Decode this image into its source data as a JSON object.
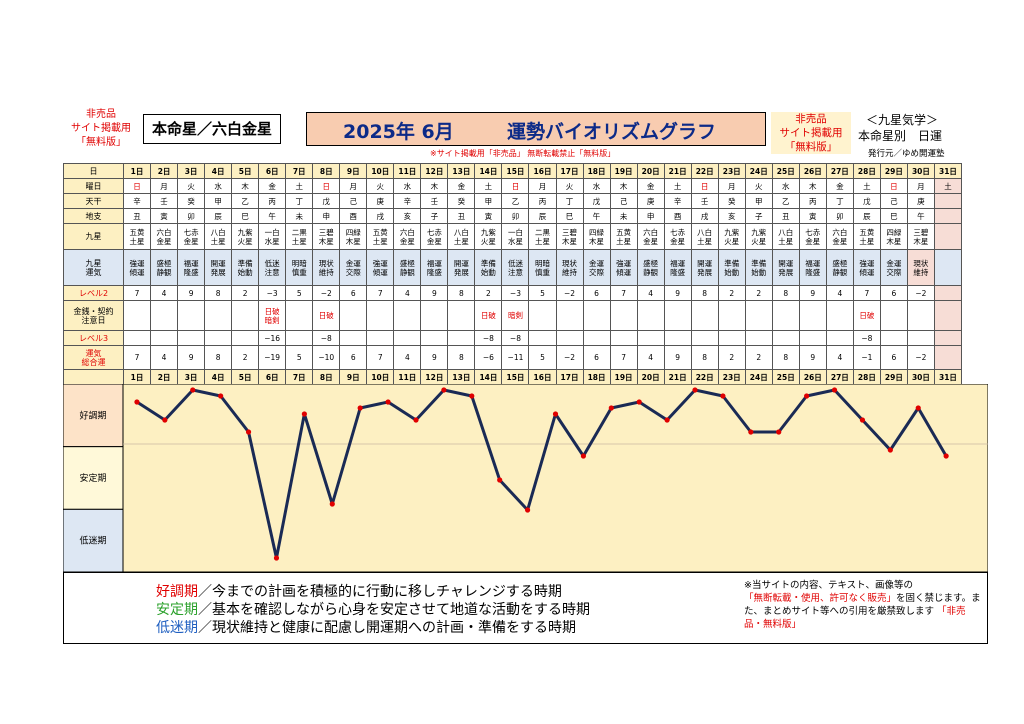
{
  "header": {
    "left_note": [
      "非売品",
      "サイト掲載用",
      "「無料版」"
    ],
    "honmei": "本命星／六白金星",
    "year_month": "2025年 6月",
    "title": "運勢バイオリズムグラフ",
    "sub_note": "※サイト掲載用「非売品」 無断転載禁止「無料版」",
    "right_note": [
      "非売品",
      "サイト掲載用",
      "「無料版」"
    ],
    "kyusei_title": "＜九星気学＞",
    "kyusei_sub": "本命星別　日運",
    "publisher": "発行元／ゆめ開運塾"
  },
  "row_labels": {
    "day": "日",
    "weekday": "曜日",
    "tenkan": "天干",
    "chishi": "地支",
    "kyusei": "九星",
    "kyusei_unki": [
      "九星",
      "運気"
    ],
    "level2": "レベル2",
    "money": [
      "金銭・契約",
      "注意日"
    ],
    "level3": "レベル3",
    "total": [
      "運気",
      "総合運"
    ]
  },
  "days": [
    "1日",
    "2日",
    "3日",
    "4日",
    "5日",
    "6日",
    "7日",
    "8日",
    "9日",
    "10日",
    "11日",
    "12日",
    "13日",
    "14日",
    "15日",
    "16日",
    "17日",
    "18日",
    "19日",
    "20日",
    "21日",
    "22日",
    "23日",
    "24日",
    "25日",
    "26日",
    "27日",
    "28日",
    "29日",
    "30日",
    "31日"
  ],
  "weekdays": [
    "日",
    "月",
    "火",
    "水",
    "木",
    "金",
    "土",
    "日",
    "月",
    "火",
    "水",
    "木",
    "金",
    "土",
    "日",
    "月",
    "火",
    "水",
    "木",
    "金",
    "土",
    "日",
    "月",
    "火",
    "水",
    "木",
    "金",
    "土",
    "日",
    "月",
    "土"
  ],
  "tenkan": [
    "辛",
    "壬",
    "癸",
    "甲",
    "乙",
    "丙",
    "丁",
    "戊",
    "己",
    "庚",
    "辛",
    "壬",
    "癸",
    "甲",
    "乙",
    "丙",
    "丁",
    "戊",
    "己",
    "庚",
    "辛",
    "壬",
    "癸",
    "甲",
    "乙",
    "丙",
    "丁",
    "戊",
    "己",
    "庚",
    ""
  ],
  "chishi": [
    "丑",
    "寅",
    "卯",
    "辰",
    "巳",
    "午",
    "未",
    "申",
    "酉",
    "戌",
    "亥",
    "子",
    "丑",
    "寅",
    "卯",
    "辰",
    "巳",
    "午",
    "未",
    "申",
    "酉",
    "戌",
    "亥",
    "子",
    "丑",
    "寅",
    "卯",
    "辰",
    "巳",
    "午",
    ""
  ],
  "kyusei": [
    [
      "五黄",
      "土星"
    ],
    [
      "六白",
      "金星"
    ],
    [
      "七赤",
      "金星"
    ],
    [
      "八白",
      "土星"
    ],
    [
      "九紫",
      "火星"
    ],
    [
      "一白",
      "水星"
    ],
    [
      "二黒",
      "土星"
    ],
    [
      "三碧",
      "木星"
    ],
    [
      "四緑",
      "木星"
    ],
    [
      "五黄",
      "土星"
    ],
    [
      "六白",
      "金星"
    ],
    [
      "七赤",
      "金星"
    ],
    [
      "八白",
      "土星"
    ],
    [
      "九紫",
      "火星"
    ],
    [
      "一白",
      "水星"
    ],
    [
      "二黒",
      "土星"
    ],
    [
      "三碧",
      "木星"
    ],
    [
      "四緑",
      "木星"
    ],
    [
      "五黄",
      "土星"
    ],
    [
      "六白",
      "金星"
    ],
    [
      "七赤",
      "金星"
    ],
    [
      "八白",
      "土星"
    ],
    [
      "九紫",
      "火星"
    ],
    [
      "九紫",
      "火星"
    ],
    [
      "八白",
      "土星"
    ],
    [
      "七赤",
      "金星"
    ],
    [
      "六白",
      "金星"
    ],
    [
      "五黄",
      "土星"
    ],
    [
      "四緑",
      "木星"
    ],
    [
      "三碧",
      "木星"
    ],
    [
      "",
      ""
    ]
  ],
  "unki": [
    [
      "強運",
      "傾運"
    ],
    [
      "盛極",
      "静観"
    ],
    [
      "福運",
      "隆盛"
    ],
    [
      "開運",
      "発展"
    ],
    [
      "準備",
      "始動"
    ],
    [
      "低迷",
      "注意"
    ],
    [
      "明暗",
      "慎重"
    ],
    [
      "現状",
      "維持"
    ],
    [
      "金運",
      "交際"
    ],
    [
      "強運",
      "傾運"
    ],
    [
      "盛極",
      "静観"
    ],
    [
      "福運",
      "隆盛"
    ],
    [
      "開運",
      "発展"
    ],
    [
      "準備",
      "始動"
    ],
    [
      "低迷",
      "注意"
    ],
    [
      "明暗",
      "慎重"
    ],
    [
      "現状",
      "維持"
    ],
    [
      "金運",
      "交際"
    ],
    [
      "強運",
      "傾運"
    ],
    [
      "盛極",
      "静観"
    ],
    [
      "福運",
      "隆盛"
    ],
    [
      "開運",
      "発展"
    ],
    [
      "準備",
      "始動"
    ],
    [
      "準備",
      "始動"
    ],
    [
      "開運",
      "発展"
    ],
    [
      "福運",
      "隆盛"
    ],
    [
      "盛極",
      "静観"
    ],
    [
      "強運",
      "傾運"
    ],
    [
      "金運",
      "交際"
    ],
    [
      "現状",
      "維持"
    ],
    [
      "",
      ""
    ]
  ],
  "level2": [
    "7",
    "4",
    "9",
    "8",
    "2",
    "−3",
    "5",
    "−2",
    "6",
    "7",
    "4",
    "9",
    "8",
    "2",
    "−3",
    "5",
    "−2",
    "6",
    "7",
    "4",
    "9",
    "8",
    "2",
    "2",
    "8",
    "9",
    "4",
    "7",
    "6",
    "−2",
    ""
  ],
  "money": [
    [
      "",
      ""
    ],
    [
      "",
      ""
    ],
    [
      "",
      ""
    ],
    [
      "",
      ""
    ],
    [
      "",
      ""
    ],
    [
      "日破",
      "暗剣"
    ],
    [
      "",
      ""
    ],
    [
      "日破",
      ""
    ],
    [
      "",
      ""
    ],
    [
      "",
      ""
    ],
    [
      "",
      ""
    ],
    [
      "",
      ""
    ],
    [
      "",
      ""
    ],
    [
      "日破",
      ""
    ],
    [
      "暗剣",
      ""
    ],
    [
      "",
      ""
    ],
    [
      "",
      ""
    ],
    [
      "",
      ""
    ],
    [
      "",
      ""
    ],
    [
      "",
      ""
    ],
    [
      "",
      ""
    ],
    [
      "",
      ""
    ],
    [
      "",
      ""
    ],
    [
      "",
      ""
    ],
    [
      "",
      ""
    ],
    [
      "",
      ""
    ],
    [
      "",
      ""
    ],
    [
      "日破",
      ""
    ],
    [
      "",
      ""
    ],
    [
      "",
      ""
    ],
    [
      "",
      ""
    ]
  ],
  "level3": [
    "",
    "",
    "",
    "",
    "",
    "−16",
    "",
    "−8",
    "",
    "",
    "",
    "",
    "",
    "−8",
    "−8",
    "",
    "",
    "",
    "",
    "",
    "",
    "",
    "",
    "",
    "",
    "",
    "",
    "−8",
    "",
    "",
    ""
  ],
  "total": [
    "7",
    "4",
    "9",
    "8",
    "2",
    "−19",
    "5",
    "−10",
    "6",
    "7",
    "4",
    "9",
    "8",
    "−6",
    "−11",
    "5",
    "−2",
    "6",
    "7",
    "4",
    "9",
    "8",
    "2",
    "2",
    "8",
    "9",
    "4",
    "−1",
    "6",
    "−2",
    ""
  ],
  "chart_data": {
    "type": "line",
    "x": [
      "1日",
      "2日",
      "3日",
      "4日",
      "5日",
      "6日",
      "7日",
      "8日",
      "9日",
      "10日",
      "11日",
      "12日",
      "13日",
      "14日",
      "15日",
      "16日",
      "17日",
      "18日",
      "19日",
      "20日",
      "21日",
      "22日",
      "23日",
      "24日",
      "25日",
      "26日",
      "27日",
      "28日",
      "29日",
      "30日"
    ],
    "values": [
      7,
      4,
      9,
      8,
      2,
      -19,
      5,
      -10,
      6,
      7,
      4,
      9,
      8,
      -6,
      -11,
      5,
      -2,
      6,
      7,
      4,
      9,
      8,
      2,
      2,
      8,
      9,
      4,
      -1,
      6,
      -2
    ],
    "ylim": [
      -20,
      10
    ],
    "bands": [
      "好調期",
      "安定期",
      "低迷期"
    ],
    "line_color": "#1a2a55",
    "marker_color": "#e00000"
  },
  "legend": {
    "lines": [
      {
        "term": "好調期",
        "text": "／今までの計画を積極的に行動に移しチャレンジする時期",
        "color": "#e00000"
      },
      {
        "term": "安定期",
        "text": "／基本を確認しながら心身を安定させて地道な活動をする時期",
        "color": "#2aa02a"
      },
      {
        "term": "低迷期",
        "text": "／現状維持と健康に配慮し開運期への計画・準備をする時期",
        "color": "#1f5fc0"
      }
    ],
    "notice_1": "※当サイトの内容、テキスト、画像等の",
    "notice_red": "「無断転載・使用、許可なく販売」",
    "notice_2": "を固く禁じます。また、まとめサイト等への引用を厳禁致します",
    "notice_red2": "「非売品・無料版」"
  }
}
